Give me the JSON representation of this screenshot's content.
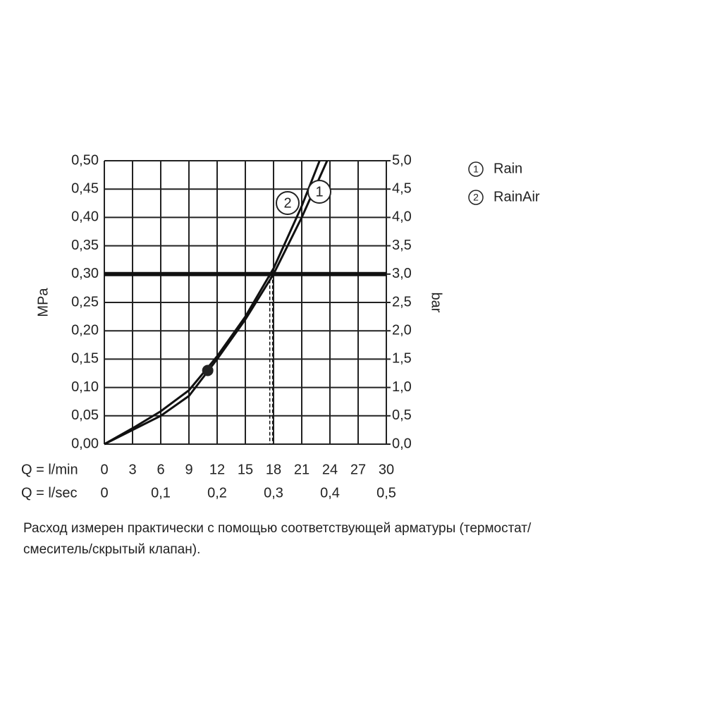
{
  "chart_data": {
    "type": "line",
    "ylabel": "MPa",
    "y2label": "bar",
    "xlabel": "Q = l/min",
    "x2label": "Q = l/sec",
    "xlim": [
      0,
      30
    ],
    "xticks": [
      0,
      3,
      6,
      9,
      12,
      15,
      18,
      21,
      24,
      27,
      30
    ],
    "x2lim": [
      0,
      0.5
    ],
    "x2ticks": [
      0,
      {
        "value": 0.1,
        "label": "0,1"
      },
      {
        "value": 0.2,
        "label": "0,2"
      },
      {
        "value": 0.3,
        "label": "0,3"
      },
      {
        "value": 0.4,
        "label": "0,4"
      },
      {
        "value": 0.5,
        "label": "0,5"
      }
    ],
    "ylim": [
      0,
      0.5
    ],
    "yticks": [
      {
        "value": 0,
        "label": "0,00"
      },
      {
        "value": 0.05,
        "label": "0,05"
      },
      {
        "value": 0.1,
        "label": "0,10"
      },
      {
        "value": 0.15,
        "label": "0,15"
      },
      {
        "value": 0.2,
        "label": "0,20"
      },
      {
        "value": 0.25,
        "label": "0,25"
      },
      {
        "value": 0.3,
        "label": "0,30"
      },
      {
        "value": 0.35,
        "label": "0,35"
      },
      {
        "value": 0.4,
        "label": "0,40"
      },
      {
        "value": 0.45,
        "label": "0,45"
      },
      {
        "value": 0.5,
        "label": "0,50"
      }
    ],
    "y2lim": [
      0,
      5
    ],
    "y2ticks": [
      {
        "value": 0,
        "label": "0,0"
      },
      {
        "value": 0.5,
        "label": "0,5"
      },
      {
        "value": 1,
        "label": "1,0"
      },
      {
        "value": 1.5,
        "label": "1,5"
      },
      {
        "value": 2,
        "label": "2,0"
      },
      {
        "value": 2.5,
        "label": "2,5"
      },
      {
        "value": 3,
        "label": "3,0"
      },
      {
        "value": 3.5,
        "label": "3,5"
      },
      {
        "value": 4,
        "label": "4,0"
      },
      {
        "value": 4.5,
        "label": "4,5"
      },
      {
        "value": 5,
        "label": "5,0"
      }
    ],
    "grid": true,
    "reference_line": 0.3,
    "dashed_x": [
      17.6,
      17.9
    ],
    "marker": {
      "x": 11,
      "y": 0.13
    },
    "series": [
      {
        "name": "Rain",
        "label": "1",
        "color": "#111111",
        "x": [
          0,
          3,
          6,
          9,
          12,
          15,
          18,
          21,
          23.7
        ],
        "values": [
          0,
          0.025,
          0.05,
          0.085,
          0.15,
          0.22,
          0.3,
          0.4,
          0.5
        ]
      },
      {
        "name": "RainAir",
        "label": "2",
        "color": "#111111",
        "x": [
          0,
          3,
          6,
          9,
          12,
          15,
          18,
          21,
          22.9
        ],
        "values": [
          0,
          0.028,
          0.058,
          0.095,
          0.155,
          0.225,
          0.31,
          0.42,
          0.5
        ]
      }
    ],
    "note": [
      "Расход измерен практически с помощью соответствующей арматуры (термостат/",
      "смеситель/скрытый клапан)."
    ]
  }
}
